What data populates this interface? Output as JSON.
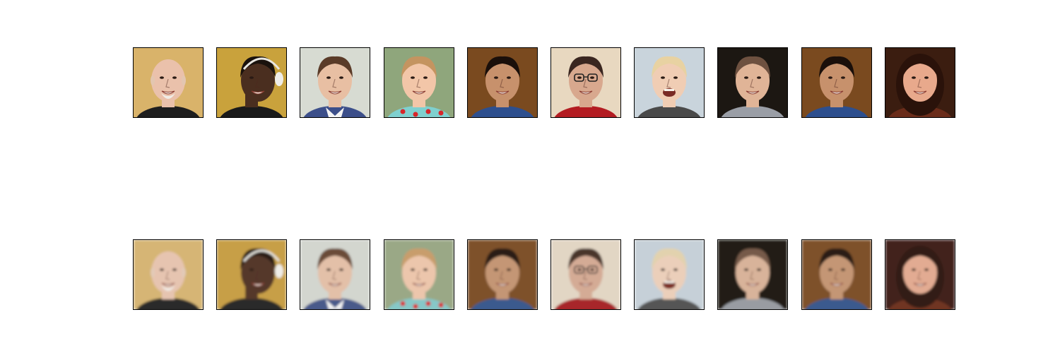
{
  "figure": {
    "rows": [
      {
        "row": "original",
        "tiles": [
          {
            "subject": "bald-man-white-goatee",
            "bg": "#d9b36a",
            "skin": "#eac1ab",
            "hair": "#e3c6b0",
            "shirt": "#1e1e1e",
            "extra": "goatee"
          },
          {
            "subject": "man-with-headphones-profile",
            "bg": "#c9a23c",
            "skin": "#4a2e1f",
            "hair": "#1a120d",
            "shirt": "#1a1a1a",
            "extra": "headphones"
          },
          {
            "subject": "young-man-short-hair",
            "bg": "#d7dbd2",
            "skin": "#e8bfa3",
            "hair": "#5a3b28",
            "shirt": "#3c4f8a",
            "extra": "collar"
          },
          {
            "subject": "toddler-girl-red-flowers",
            "bg": "#8fa67c",
            "skin": "#f2c6a8",
            "hair": "#c49460",
            "shirt": "#7fd0cf",
            "extra": "flowers"
          },
          {
            "subject": "smiling-man-dark-hair",
            "bg": "#7a4a1f",
            "skin": "#c7916c",
            "hair": "#1a0f0a",
            "shirt": "#2d4f8e",
            "extra": "none"
          },
          {
            "subject": "older-woman-glasses",
            "bg": "#e8d8c0",
            "skin": "#d8a88e",
            "hair": "#3a2620",
            "shirt": "#b31c22",
            "extra": "glasses"
          },
          {
            "subject": "blond-toddler-laughing",
            "bg": "#c9d4dc",
            "skin": "#f0cdb4",
            "hair": "#e8d2a2",
            "shirt": "#4a4a4a",
            "extra": "laugh"
          },
          {
            "subject": "boy-dark-background",
            "bg": "#1c1712",
            "skin": "#e0b497",
            "hair": "#6e5140",
            "shirt": "#9a9ea6",
            "extra": "none"
          },
          {
            "subject": "smiling-man-dark-hair",
            "bg": "#7a4a1f",
            "skin": "#c7916c",
            "hair": "#1a0f0a",
            "shirt": "#2d4f8e",
            "extra": "none"
          },
          {
            "subject": "smiling-woman-dark-hair",
            "bg": "#3b1d10",
            "skin": "#e8a98c",
            "hair": "#2a120a",
            "shirt": "#6a2c1a",
            "extra": "long-hair"
          }
        ]
      },
      {
        "row": "reconstructed",
        "tiles": [
          {
            "subject": "bald-man-white-goatee",
            "bg": "#d6b574",
            "skin": "#e6c4b0",
            "hair": "#e2cab8",
            "shirt": "#2a2a2a",
            "extra": "goatee"
          },
          {
            "subject": "man-with-headphones-profile",
            "bg": "#c79f46",
            "skin": "#54382a",
            "hair": "#2a1d15",
            "shirt": "#2a2a2a",
            "extra": "headphones"
          },
          {
            "subject": "young-man-short-hair",
            "bg": "#d3d6cf",
            "skin": "#e3c0a8",
            "hair": "#6a4b38",
            "shirt": "#4a5a8a",
            "extra": "collar"
          },
          {
            "subject": "toddler-girl-red-flowers",
            "bg": "#9aa886",
            "skin": "#ecc6ac",
            "hair": "#c89d6c",
            "shirt": "#86c8c8",
            "extra": "flowers"
          },
          {
            "subject": "smiling-man-dark-hair",
            "bg": "#7e512a",
            "skin": "#c49675",
            "hair": "#2a1a12",
            "shirt": "#3a5a8e",
            "extra": "none"
          },
          {
            "subject": "older-woman-glasses",
            "bg": "#e2d6c4",
            "skin": "#d4ab95",
            "hair": "#4a342c",
            "shirt": "#a8282c",
            "extra": "glasses"
          },
          {
            "subject": "blond-toddler-laughing",
            "bg": "#c6d0d8",
            "skin": "#ebcfba",
            "hair": "#e2d2ae",
            "shirt": "#555555",
            "extra": "laugh"
          },
          {
            "subject": "boy-dark-background",
            "bg": "#221c16",
            "skin": "#d8b39a",
            "hair": "#765a4a",
            "shirt": "#999ca2",
            "extra": "none"
          },
          {
            "subject": "smiling-man-dark-hair",
            "bg": "#7e512a",
            "skin": "#c49675",
            "hair": "#2a1a12",
            "shirt": "#3a5a8e",
            "extra": "none"
          },
          {
            "subject": "smiling-woman-dark-hair",
            "bg": "#42231a",
            "skin": "#e2ab92",
            "hair": "#321a12",
            "shirt": "#703422",
            "extra": "long-hair"
          }
        ]
      }
    ]
  }
}
